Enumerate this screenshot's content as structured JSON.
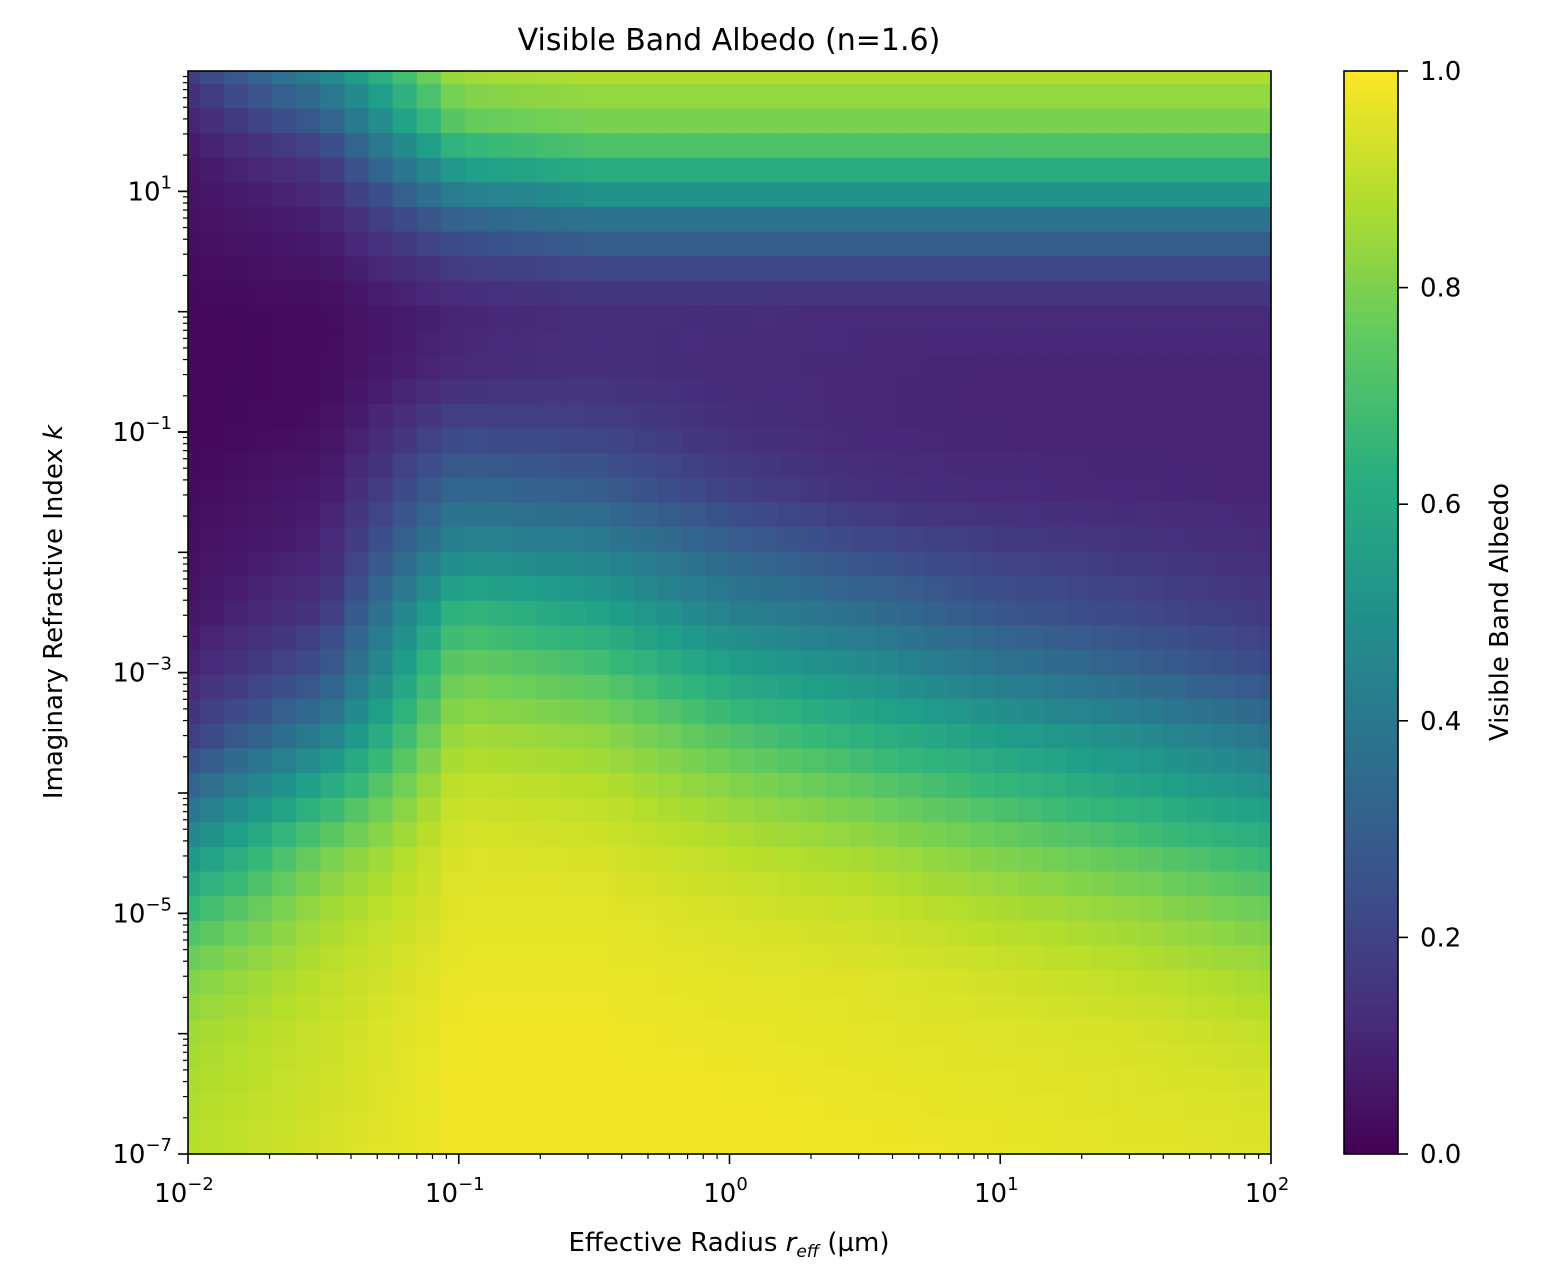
{
  "chart_data": {
    "type": "heatmap",
    "title": "Visible Band Albedo (n=1.6)",
    "xlabel": {
      "main": "Effective Radius ",
      "var": "r",
      "sub": "eff",
      "unit": " (µm)"
    },
    "ylabel": {
      "main": "Imaginary Refractive Index ",
      "var": "k"
    },
    "x_scale": "log",
    "y_scale": "log",
    "xlim": [
      0.01,
      100
    ],
    "ylim": [
      1e-07,
      100
    ],
    "x_ticks": [
      {
        "base": "10",
        "exp": "−2",
        "value": 0.01
      },
      {
        "base": "10",
        "exp": "−1",
        "value": 0.1
      },
      {
        "base": "10",
        "exp": "0",
        "value": 1
      },
      {
        "base": "10",
        "exp": "1",
        "value": 10
      },
      {
        "base": "10",
        "exp": "2",
        "value": 100
      }
    ],
    "y_ticks": [
      {
        "base": "10",
        "exp": "−7",
        "value": 1e-07
      },
      {
        "base": "10",
        "exp": "−5",
        "value": 1e-05
      },
      {
        "base": "10",
        "exp": "−3",
        "value": 0.001
      },
      {
        "base": "10",
        "exp": "−1",
        "value": 0.1
      },
      {
        "base": "10",
        "exp": "1",
        "value": 10
      }
    ],
    "x_grid": {
      "start_log10": -2,
      "end_log10": 2,
      "count": 46
    },
    "y_grid": {
      "start_log10": -7,
      "end_log10": 2,
      "count": 45
    },
    "colormap": "viridis",
    "colorbar": {
      "label": "Visible Band Albedo",
      "range": [
        0,
        1
      ],
      "ticks": [
        {
          "label": "0.0",
          "value": 0.0
        },
        {
          "label": "0.2",
          "value": 0.2
        },
        {
          "label": "0.4",
          "value": 0.4
        },
        {
          "label": "0.6",
          "value": 0.6
        },
        {
          "label": "0.8",
          "value": 0.8
        },
        {
          "label": "1.0",
          "value": 1.0
        }
      ]
    },
    "z_samples": {
      "note": "albedo sampled at log10(r_eff) columns -2,-1.5,-1,-0.5,0,0.5,1,1.5,2 for log10(k) rows listed",
      "log10_r": [
        -2,
        -1.5,
        -1,
        -0.5,
        0,
        0.5,
        1,
        1.5,
        2
      ],
      "rows": [
        {
          "log10_k": 2.0,
          "z": [
            0.18,
            0.45,
            0.86,
            0.88,
            0.88,
            0.88,
            0.88,
            0.88,
            0.88
          ]
        },
        {
          "log10_k": 1.6,
          "z": [
            0.1,
            0.3,
            0.76,
            0.8,
            0.8,
            0.8,
            0.8,
            0.8,
            0.8
          ]
        },
        {
          "log10_k": 1.3,
          "z": [
            0.06,
            0.18,
            0.62,
            0.68,
            0.68,
            0.68,
            0.68,
            0.68,
            0.68
          ]
        },
        {
          "log10_k": 1.0,
          "z": [
            0.05,
            0.12,
            0.44,
            0.52,
            0.52,
            0.52,
            0.52,
            0.52,
            0.52
          ]
        },
        {
          "log10_k": 0.7,
          "z": [
            0.04,
            0.08,
            0.28,
            0.34,
            0.34,
            0.34,
            0.34,
            0.34,
            0.34
          ]
        },
        {
          "log10_k": 0.3,
          "z": [
            0.03,
            0.05,
            0.16,
            0.19,
            0.19,
            0.19,
            0.19,
            0.19,
            0.19
          ]
        },
        {
          "log10_k": 0.0,
          "z": [
            0.02,
            0.03,
            0.1,
            0.13,
            0.13,
            0.12,
            0.12,
            0.12,
            0.12
          ]
        },
        {
          "log10_k": -0.5,
          "z": [
            0.02,
            0.03,
            0.12,
            0.14,
            0.12,
            0.11,
            0.1,
            0.1,
            0.1
          ]
        },
        {
          "log10_k": -1.0,
          "z": [
            0.02,
            0.04,
            0.22,
            0.2,
            0.14,
            0.11,
            0.1,
            0.1,
            0.1
          ]
        },
        {
          "log10_k": -1.5,
          "z": [
            0.03,
            0.07,
            0.34,
            0.3,
            0.2,
            0.14,
            0.12,
            0.11,
            0.1
          ]
        },
        {
          "log10_k": -2.0,
          "z": [
            0.04,
            0.1,
            0.48,
            0.44,
            0.32,
            0.24,
            0.19,
            0.16,
            0.13
          ]
        },
        {
          "log10_k": -2.5,
          "z": [
            0.06,
            0.16,
            0.66,
            0.58,
            0.44,
            0.36,
            0.27,
            0.22,
            0.17
          ]
        },
        {
          "log10_k": -3.0,
          "z": [
            0.1,
            0.26,
            0.78,
            0.72,
            0.58,
            0.5,
            0.4,
            0.32,
            0.24
          ]
        },
        {
          "log10_k": -3.5,
          "z": [
            0.18,
            0.42,
            0.86,
            0.83,
            0.72,
            0.63,
            0.55,
            0.48,
            0.38
          ]
        },
        {
          "log10_k": -4.0,
          "z": [
            0.34,
            0.62,
            0.92,
            0.9,
            0.83,
            0.76,
            0.68,
            0.6,
            0.52
          ]
        },
        {
          "log10_k": -4.5,
          "z": [
            0.52,
            0.78,
            0.95,
            0.94,
            0.9,
            0.86,
            0.8,
            0.74,
            0.66
          ]
        },
        {
          "log10_k": -5.0,
          "z": [
            0.68,
            0.86,
            0.96,
            0.96,
            0.94,
            0.92,
            0.88,
            0.84,
            0.78
          ]
        },
        {
          "log10_k": -5.5,
          "z": [
            0.8,
            0.9,
            0.97,
            0.97,
            0.96,
            0.95,
            0.93,
            0.9,
            0.86
          ]
        },
        {
          "log10_k": -6.0,
          "z": [
            0.86,
            0.92,
            0.98,
            0.98,
            0.97,
            0.96,
            0.95,
            0.94,
            0.91
          ]
        },
        {
          "log10_k": -6.5,
          "z": [
            0.88,
            0.93,
            0.98,
            0.98,
            0.98,
            0.97,
            0.96,
            0.95,
            0.94
          ]
        },
        {
          "log10_k": -7.0,
          "z": [
            0.89,
            0.94,
            0.98,
            0.98,
            0.98,
            0.98,
            0.97,
            0.96,
            0.95
          ]
        }
      ]
    }
  }
}
